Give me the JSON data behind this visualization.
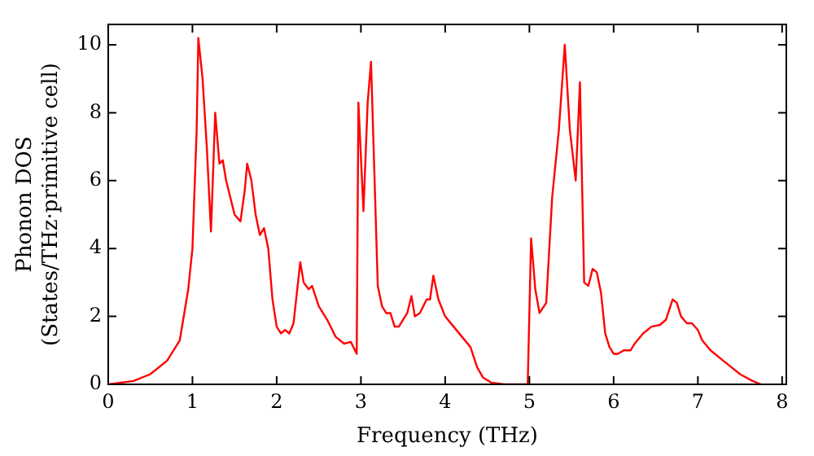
{
  "chart_data": {
    "type": "line",
    "xlabel": "Frequency (THz)",
    "ylabel": "Phonon DOS\n(States/THz·primitive cell)",
    "xlim": [
      0,
      8.05
    ],
    "ylim": [
      0,
      10.6
    ],
    "xticks": [
      0,
      1,
      2,
      3,
      4,
      5,
      6,
      7,
      8
    ],
    "yticks": [
      0,
      2,
      4,
      6,
      8,
      10
    ],
    "grid": false,
    "legend": false,
    "marker": "none",
    "line_style": "solid",
    "series": [
      {
        "color": "#ff0000",
        "x": [
          0,
          0.3,
          0.5,
          0.7,
          0.85,
          0.95,
          1.0,
          1.05,
          1.07,
          1.12,
          1.17,
          1.22,
          1.27,
          1.32,
          1.36,
          1.4,
          1.5,
          1.57,
          1.62,
          1.65,
          1.7,
          1.75,
          1.8,
          1.85,
          1.9,
          1.95,
          2.0,
          2.05,
          2.1,
          2.15,
          2.2,
          2.28,
          2.32,
          2.38,
          2.42,
          2.5,
          2.6,
          2.7,
          2.8,
          2.88,
          2.95,
          2.97,
          3.03,
          3.08,
          3.12,
          3.2,
          3.25,
          3.3,
          3.35,
          3.4,
          3.45,
          3.55,
          3.6,
          3.64,
          3.7,
          3.78,
          3.82,
          3.86,
          3.92,
          4.0,
          4.1,
          4.2,
          4.3,
          4.38,
          4.45,
          4.55,
          4.7,
          4.98,
          5.02,
          5.07,
          5.12,
          5.2,
          5.27,
          5.35,
          5.42,
          5.48,
          5.55,
          5.6,
          5.65,
          5.7,
          5.75,
          5.8,
          5.85,
          5.9,
          5.95,
          6.0,
          6.05,
          6.12,
          6.2,
          6.25,
          6.35,
          6.45,
          6.55,
          6.62,
          6.7,
          6.75,
          6.8,
          6.87,
          6.93,
          7.0,
          7.05,
          7.15,
          7.3,
          7.4,
          7.5,
          7.65,
          7.75
        ],
        "values": [
          0,
          0.1,
          0.3,
          0.7,
          1.3,
          2.8,
          4.0,
          7.5,
          10.2,
          9,
          7,
          4.5,
          8.0,
          6.5,
          6.6,
          6.0,
          5.0,
          4.8,
          5.7,
          6.5,
          6.0,
          5.0,
          4.4,
          4.6,
          4.0,
          2.5,
          1.7,
          1.5,
          1.6,
          1.5,
          1.8,
          3.6,
          3.0,
          2.8,
          2.9,
          2.3,
          1.9,
          1.4,
          1.2,
          1.25,
          0.9,
          8.3,
          5.1,
          8.3,
          9.5,
          2.9,
          2.3,
          2.1,
          2.1,
          1.7,
          1.7,
          2.1,
          2.6,
          2.0,
          2.1,
          2.5,
          2.5,
          3.2,
          2.5,
          2.0,
          1.7,
          1.4,
          1.1,
          0.5,
          0.2,
          0.05,
          0,
          0,
          4.3,
          2.8,
          2.1,
          2.4,
          5.5,
          7.5,
          10.0,
          7.5,
          6.0,
          8.9,
          3.0,
          2.9,
          3.4,
          3.3,
          2.7,
          1.5,
          1.1,
          0.9,
          0.9,
          1.0,
          1.0,
          1.2,
          1.5,
          1.7,
          1.75,
          1.9,
          2.5,
          2.4,
          2.0,
          1.8,
          1.8,
          1.6,
          1.3,
          1.0,
          0.7,
          0.5,
          0.3,
          0.1,
          0
        ]
      }
    ]
  }
}
